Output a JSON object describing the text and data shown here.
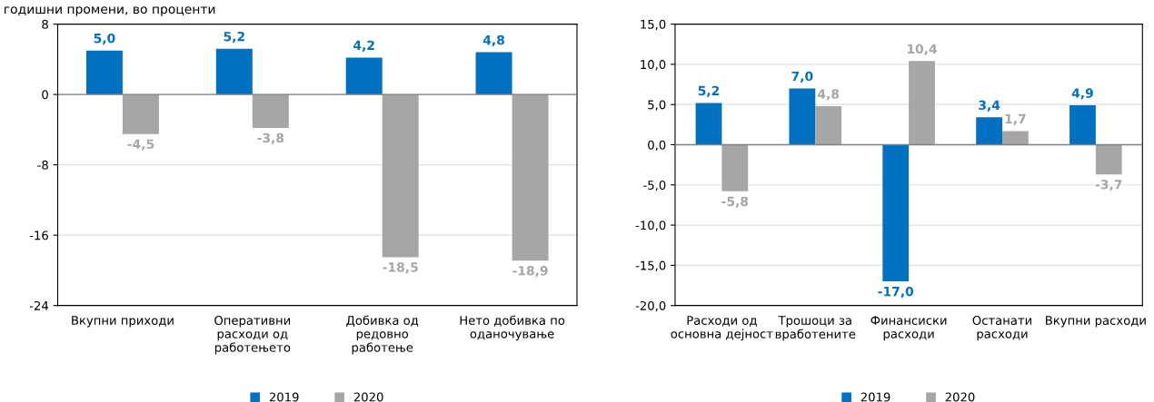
{
  "chart_data": [
    {
      "type": "bar",
      "title": "годишни промени, во проценти",
      "categories": [
        "Вкупни приходи",
        "Оперативни\nрасходи од\nработењето",
        "Добивка од\nредовно\nработење",
        "Нето добивка по\nоданочување"
      ],
      "series": [
        {
          "name": "2019",
          "color": "#0070c0",
          "values": [
            5.0,
            5.2,
            4.2,
            4.8
          ],
          "value_labels": [
            "5,0",
            "5,2",
            "4,2",
            "4,8"
          ]
        },
        {
          "name": "2020",
          "color": "#a6a6a6",
          "values": [
            -4.5,
            -3.8,
            -18.5,
            -18.9
          ],
          "value_labels": [
            "-4,5",
            "-3,8",
            "-18,5",
            "-18,9"
          ]
        }
      ],
      "ylim": [
        -24,
        8
      ],
      "yticks": [
        -24,
        -16,
        -8,
        0,
        8
      ],
      "grid": "y",
      "legend": "bottom"
    },
    {
      "type": "bar",
      "categories": [
        "Расходи од\nосновна дејност",
        "Трошоци за\nвработените",
        "Финансиски\nрасходи",
        "Останати\nрасходи",
        "Вкупни расходи"
      ],
      "series": [
        {
          "name": "2019",
          "color": "#0070c0",
          "values": [
            5.2,
            7.0,
            -17.0,
            3.4,
            4.9
          ],
          "value_labels": [
            "5,2",
            "7,0",
            "-17,0",
            "3,4",
            "4,9"
          ]
        },
        {
          "name": "2020",
          "color": "#a6a6a6",
          "values": [
            -5.8,
            4.8,
            10.4,
            1.7,
            -3.7
          ],
          "value_labels": [
            "-5,8",
            "4,8",
            "10,4",
            "1,7",
            "-3,7"
          ]
        }
      ],
      "ylim": [
        -20,
        15
      ],
      "yticks": [
        {
          "value": -20,
          "label": "-20,0"
        },
        {
          "value": -15,
          "label": "-15,0"
        },
        {
          "value": -10,
          "label": "-10,0"
        },
        {
          "value": -5,
          "label": "-5,0"
        },
        {
          "value": 0,
          "label": "0,0"
        },
        {
          "value": 5,
          "label": "5,0"
        },
        {
          "value": 10,
          "label": "10,0"
        },
        {
          "value": 15,
          "label": "15,0"
        }
      ],
      "grid": "y",
      "legend": "bottom"
    }
  ]
}
